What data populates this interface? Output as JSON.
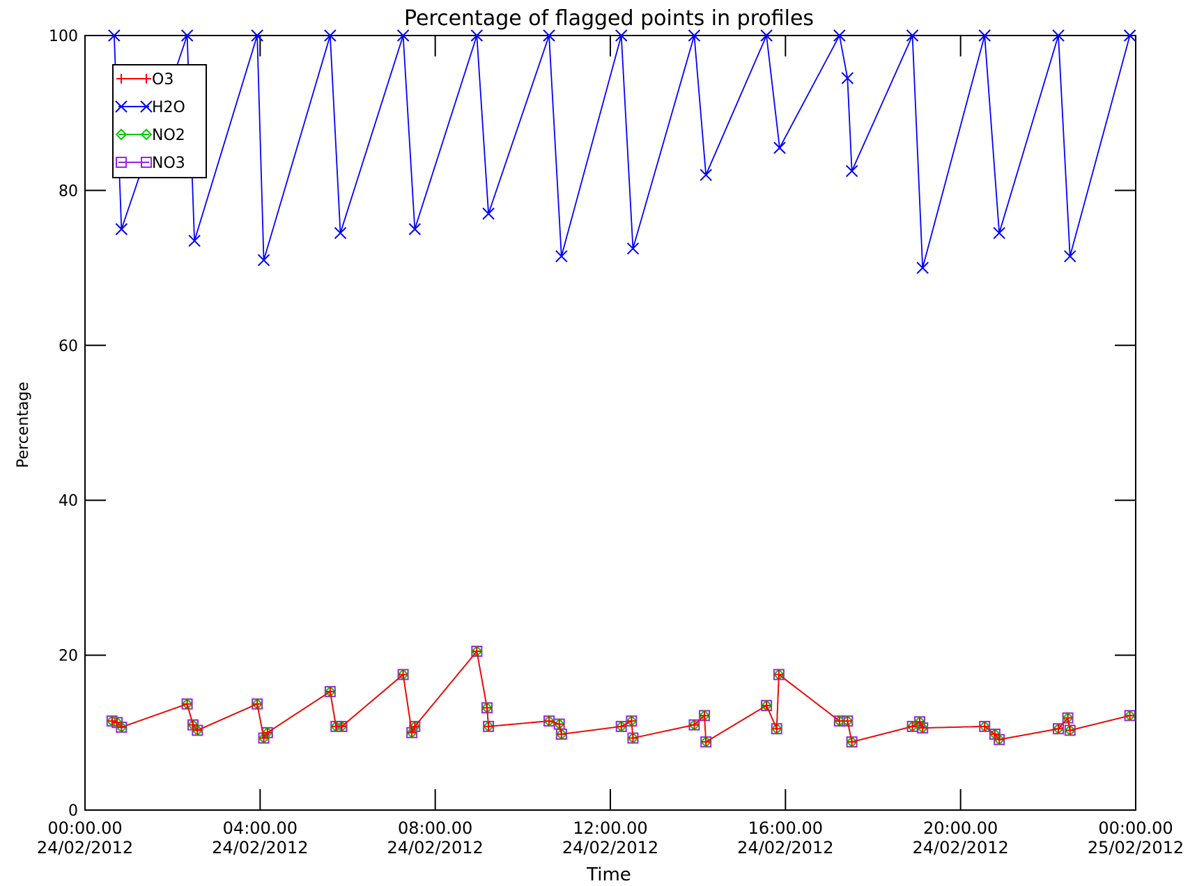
{
  "chart_data": {
    "type": "line",
    "title": "Percentage of flagged points in profiles",
    "xlabel": "Time",
    "ylabel": "Percentage",
    "xlim": [
      "2012-02-24 00:00",
      "2012-02-25 00:00"
    ],
    "ylim": [
      0,
      100
    ],
    "y_ticks": [
      0,
      20,
      40,
      60,
      80,
      100
    ],
    "y_tick_labels": [
      "0",
      "20",
      "40",
      "60",
      "80",
      "100"
    ],
    "x_ticks": [
      "2012-02-24 00:00",
      "2012-02-24 04:00",
      "2012-02-24 08:00",
      "2012-02-24 12:00",
      "2012-02-24 16:00",
      "2012-02-24 20:00",
      "2012-02-25 00:00"
    ],
    "x_tick_labels": [
      [
        "00:00.00",
        "24/02/2012"
      ],
      [
        "04:00.00",
        "24/02/2012"
      ],
      [
        "08:00.00",
        "24/02/2012"
      ],
      [
        "12:00.00",
        "24/02/2012"
      ],
      [
        "16:00.00",
        "24/02/2012"
      ],
      [
        "20:00.00",
        "24/02/2012"
      ],
      [
        "00:00.00",
        "25/02/2012"
      ]
    ],
    "grid": false,
    "legend_position": "top-left",
    "series": [
      {
        "name": "O3",
        "color": "#ff0000",
        "marker": "plus",
        "x": [
          "2012-02-24 00:37",
          "2012-02-24 00:44",
          "2012-02-24 00:50",
          "2012-02-24 02:20",
          "2012-02-24 02:28",
          "2012-02-24 02:34",
          "2012-02-24 03:56",
          "2012-02-24 04:05",
          "2012-02-24 04:10",
          "2012-02-24 05:36",
          "2012-02-24 05:44",
          "2012-02-24 05:52",
          "2012-02-24 07:16",
          "2012-02-24 07:28",
          "2012-02-24 07:32",
          "2012-02-24 08:57",
          "2012-02-24 09:11",
          "2012-02-24 09:13",
          "2012-02-24 10:36",
          "2012-02-24 10:50",
          "2012-02-24 10:53",
          "2012-02-24 12:15",
          "2012-02-24 12:29",
          "2012-02-24 12:31",
          "2012-02-24 13:55",
          "2012-02-24 14:09",
          "2012-02-24 14:11",
          "2012-02-24 15:34",
          "2012-02-24 15:48",
          "2012-02-24 15:51",
          "2012-02-24 17:14",
          "2012-02-24 17:25",
          "2012-02-24 17:31",
          "2012-02-24 18:54",
          "2012-02-24 19:04",
          "2012-02-24 19:08",
          "2012-02-24 20:33",
          "2012-02-24 20:47",
          "2012-02-24 20:53",
          "2012-02-24 22:14",
          "2012-02-24 22:27",
          "2012-02-24 22:30",
          "2012-02-24 23:52"
        ],
        "y": [
          11.5,
          11.3,
          10.7,
          13.7,
          11.0,
          10.3,
          13.7,
          9.3,
          10.0,
          15.3,
          10.8,
          10.8,
          17.5,
          10.0,
          10.8,
          20.5,
          13.2,
          10.8,
          11.5,
          11.1,
          9.8,
          10.8,
          11.5,
          9.3,
          11.0,
          12.2,
          8.8,
          13.5,
          10.5,
          17.5,
          11.5,
          11.5,
          8.8,
          10.8,
          11.4,
          10.6,
          10.8,
          9.8,
          9.1,
          10.5,
          11.9,
          10.3,
          12.2
        ]
      },
      {
        "name": "H2O",
        "color": "#0000ff",
        "marker": "x",
        "x": [
          "2012-02-24 00:40",
          "2012-02-24 00:50",
          "2012-02-24 02:20",
          "2012-02-24 02:30",
          "2012-02-24 03:56",
          "2012-02-24 04:05",
          "2012-02-24 05:36",
          "2012-02-24 05:50",
          "2012-02-24 07:16",
          "2012-02-24 07:32",
          "2012-02-24 08:57",
          "2012-02-24 09:13",
          "2012-02-24 10:36",
          "2012-02-24 10:53",
          "2012-02-24 12:15",
          "2012-02-24 12:31",
          "2012-02-24 13:55",
          "2012-02-24 14:11",
          "2012-02-24 15:34",
          "2012-02-24 15:52",
          "2012-02-24 17:14",
          "2012-02-24 17:25",
          "2012-02-24 17:31",
          "2012-02-24 18:54",
          "2012-02-24 19:08",
          "2012-02-24 20:33",
          "2012-02-24 20:53",
          "2012-02-24 22:14",
          "2012-02-24 22:30",
          "2012-02-24 23:52"
        ],
        "y": [
          100,
          75,
          100,
          73.5,
          100,
          71,
          100,
          74.5,
          100,
          75,
          100,
          77,
          100,
          71.5,
          100,
          72.5,
          100,
          82,
          100,
          85.5,
          100,
          94.5,
          82.5,
          100,
          70,
          100,
          74.5,
          100,
          71.5,
          100
        ]
      },
      {
        "name": "NO2",
        "color": "#00cc00",
        "marker": "diamond",
        "x": [
          "2012-02-24 00:37",
          "2012-02-24 00:44",
          "2012-02-24 00:50",
          "2012-02-24 02:20",
          "2012-02-24 02:28",
          "2012-02-24 02:34",
          "2012-02-24 03:56",
          "2012-02-24 04:05",
          "2012-02-24 04:10",
          "2012-02-24 05:36",
          "2012-02-24 05:44",
          "2012-02-24 05:52",
          "2012-02-24 07:16",
          "2012-02-24 07:28",
          "2012-02-24 07:32",
          "2012-02-24 08:57",
          "2012-02-24 09:11",
          "2012-02-24 09:13",
          "2012-02-24 10:36",
          "2012-02-24 10:50",
          "2012-02-24 10:53",
          "2012-02-24 12:15",
          "2012-02-24 12:29",
          "2012-02-24 12:31",
          "2012-02-24 13:55",
          "2012-02-24 14:09",
          "2012-02-24 14:11",
          "2012-02-24 15:34",
          "2012-02-24 15:48",
          "2012-02-24 15:51",
          "2012-02-24 17:14",
          "2012-02-24 17:25",
          "2012-02-24 17:31",
          "2012-02-24 18:54",
          "2012-02-24 19:04",
          "2012-02-24 19:08",
          "2012-02-24 20:33",
          "2012-02-24 20:47",
          "2012-02-24 20:53",
          "2012-02-24 22:14",
          "2012-02-24 22:27",
          "2012-02-24 22:30",
          "2012-02-24 23:52"
        ],
        "y": [
          11.5,
          11.3,
          10.7,
          13.7,
          11.0,
          10.3,
          13.7,
          9.3,
          10.0,
          15.3,
          10.8,
          10.8,
          17.5,
          10.0,
          10.8,
          20.5,
          13.2,
          10.8,
          11.5,
          11.1,
          9.8,
          10.8,
          11.5,
          9.3,
          11.0,
          12.2,
          8.8,
          13.5,
          10.5,
          17.5,
          11.5,
          11.5,
          8.8,
          10.8,
          11.4,
          10.6,
          10.8,
          9.8,
          9.1,
          10.5,
          11.9,
          10.3,
          12.2
        ]
      },
      {
        "name": "NO3",
        "color": "#a020f0",
        "marker": "square",
        "x": [
          "2012-02-24 00:37",
          "2012-02-24 00:44",
          "2012-02-24 00:50",
          "2012-02-24 02:20",
          "2012-02-24 02:28",
          "2012-02-24 02:34",
          "2012-02-24 03:56",
          "2012-02-24 04:05",
          "2012-02-24 04:10",
          "2012-02-24 05:36",
          "2012-02-24 05:44",
          "2012-02-24 05:52",
          "2012-02-24 07:16",
          "2012-02-24 07:28",
          "2012-02-24 07:32",
          "2012-02-24 08:57",
          "2012-02-24 09:11",
          "2012-02-24 09:13",
          "2012-02-24 10:36",
          "2012-02-24 10:50",
          "2012-02-24 10:53",
          "2012-02-24 12:15",
          "2012-02-24 12:29",
          "2012-02-24 12:31",
          "2012-02-24 13:55",
          "2012-02-24 14:09",
          "2012-02-24 14:11",
          "2012-02-24 15:34",
          "2012-02-24 15:48",
          "2012-02-24 15:51",
          "2012-02-24 17:14",
          "2012-02-24 17:25",
          "2012-02-24 17:31",
          "2012-02-24 18:54",
          "2012-02-24 19:04",
          "2012-02-24 19:08",
          "2012-02-24 20:33",
          "2012-02-24 20:47",
          "2012-02-24 20:53",
          "2012-02-24 22:14",
          "2012-02-24 22:27",
          "2012-02-24 22:30",
          "2012-02-24 23:52"
        ],
        "y": [
          11.5,
          11.3,
          10.7,
          13.7,
          11.0,
          10.3,
          13.7,
          9.3,
          10.0,
          15.3,
          10.8,
          10.8,
          17.5,
          10.0,
          10.8,
          20.5,
          13.2,
          10.8,
          11.5,
          11.1,
          9.8,
          10.8,
          11.5,
          9.3,
          11.0,
          12.2,
          8.8,
          13.5,
          10.5,
          17.5,
          11.5,
          11.5,
          8.8,
          10.8,
          11.4,
          10.6,
          10.8,
          9.8,
          9.1,
          10.5,
          11.9,
          10.3,
          12.2
        ]
      }
    ]
  }
}
